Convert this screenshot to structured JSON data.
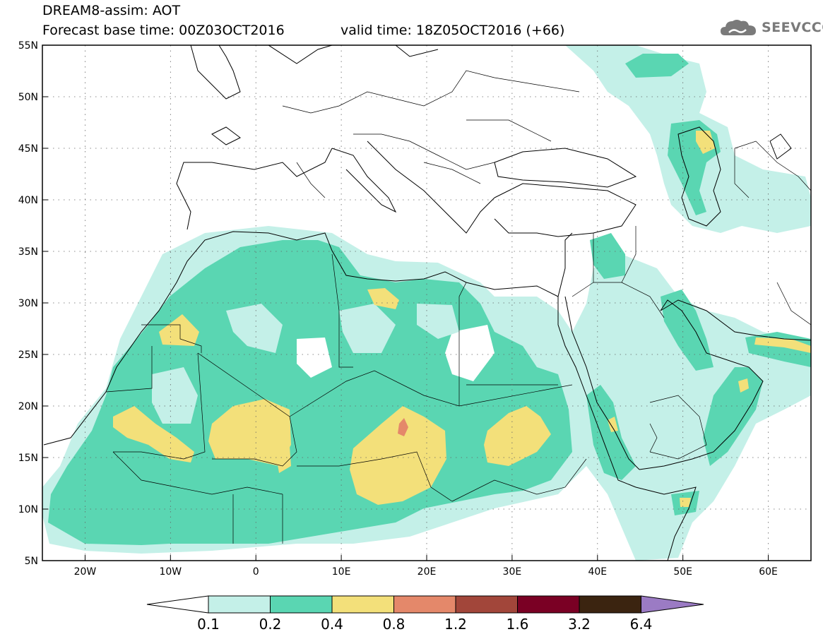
{
  "header": {
    "title": "DREAM8-assim: AOT",
    "forecast_base_time": "Forecast base time: 00Z03OCT2016",
    "valid_time": "valid time: 18Z05OCT2016 (+66)",
    "brand": "SEEVCCC",
    "brand_icon": "cloud-logo-icon"
  },
  "map": {
    "projection": "lat-lon",
    "lon_range": [
      -25,
      65
    ],
    "lat_range": [
      5,
      55
    ],
    "lon_ticks": [
      "20W",
      "10W",
      "0",
      "10E",
      "20E",
      "30E",
      "40E",
      "50E",
      "60E"
    ],
    "lat_ticks": [
      "55N",
      "50N",
      "45N",
      "40N",
      "35N",
      "30N",
      "25N",
      "20N",
      "15N",
      "10N",
      "5N"
    ],
    "grid": "dotted",
    "variable": "Dust aerosol optical thickness (AOT)"
  },
  "colorbar": {
    "levels": [
      "0.1",
      "0.2",
      "0.4",
      "0.8",
      "1.2",
      "1.6",
      "3.2",
      "6.4"
    ],
    "colors": [
      "#ffffff",
      "#c4f0e8",
      "#5ad6b2",
      "#f3e07a",
      "#e4886a",
      "#a2463a",
      "#7a0024",
      "#3b2410",
      "#9b7bc4"
    ]
  }
}
